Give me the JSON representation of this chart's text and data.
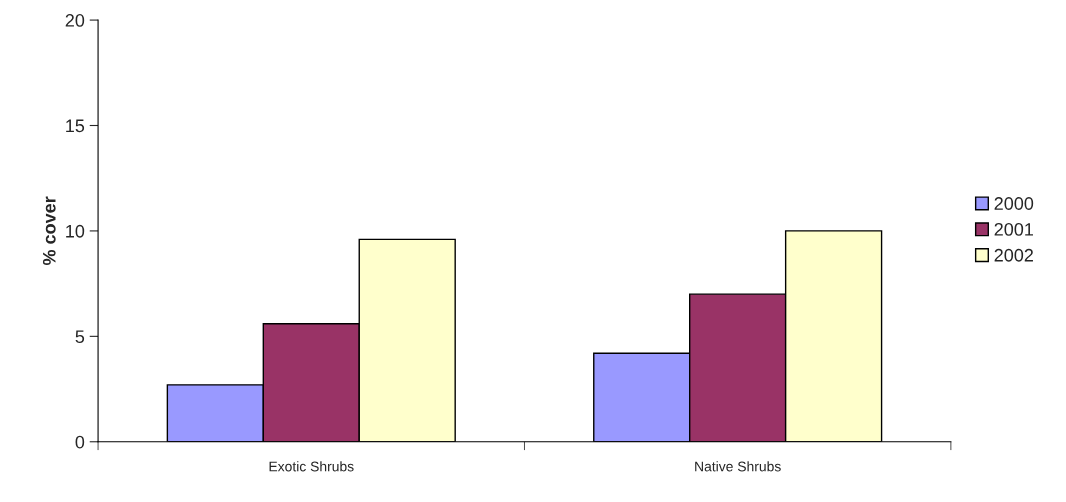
{
  "chart_data": {
    "type": "bar",
    "ylabel": "% cover",
    "categories": [
      "Exotic Shrubs",
      "Native Shrubs"
    ],
    "series": [
      {
        "name": "2000",
        "color": "#9999ff",
        "values": [
          2.7,
          4.2
        ]
      },
      {
        "name": "2001",
        "color": "#993366",
        "values": [
          5.6,
          7.0
        ]
      },
      {
        "name": "2002",
        "color": "#ffffcc",
        "values": [
          9.6,
          10.0
        ]
      }
    ],
    "ylim": [
      0,
      20
    ],
    "yticks": [
      0,
      5,
      10,
      15,
      20
    ],
    "grid": false,
    "legend": "right"
  }
}
